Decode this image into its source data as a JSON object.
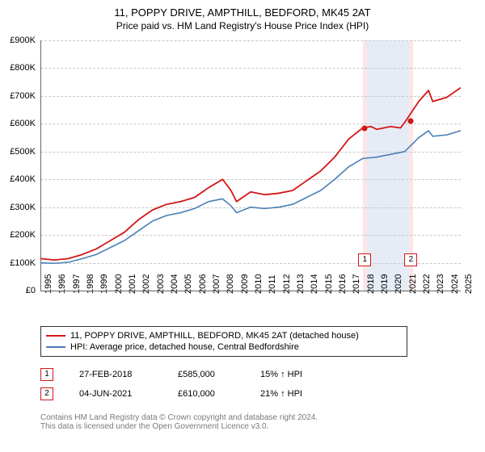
{
  "title": "11, POPPY DRIVE, AMPTHILL, BEDFORD, MK45 2AT",
  "subtitle": "Price paid vs. HM Land Registry's House Price Index (HPI)",
  "chart": {
    "type": "line",
    "background_color": "#ffffff",
    "grid_color": "#c8c8c8",
    "grid_dash": "3,3",
    "axis_color": "#666666",
    "x_range_years": [
      1995,
      2025
    ],
    "x_ticks": [
      1995,
      1996,
      1997,
      1998,
      1999,
      2000,
      2001,
      2002,
      2003,
      2004,
      2005,
      2006,
      2007,
      2008,
      2009,
      2010,
      2011,
      2012,
      2013,
      2014,
      2015,
      2016,
      2017,
      2018,
      2019,
      2020,
      2021,
      2022,
      2023,
      2024,
      2025
    ],
    "y_range": [
      0,
      900000
    ],
    "y_tick_step": 100000,
    "y_ticks": [
      0,
      100000,
      200000,
      300000,
      400000,
      500000,
      600000,
      700000,
      800000,
      900000
    ],
    "y_tick_labels": [
      "£0",
      "£100K",
      "£200K",
      "£300K",
      "£400K",
      "£500K",
      "£600K",
      "£700K",
      "£800K",
      "£900K"
    ],
    "series": [
      {
        "name": "11, POPPY DRIVE, AMPTHILL, BEDFORD, MK45 2AT (detached house)",
        "color": "#d21616",
        "width": 1.8,
        "points": [
          [
            1995,
            115000
          ],
          [
            1996,
            110000
          ],
          [
            1997,
            115000
          ],
          [
            1998,
            130000
          ],
          [
            1999,
            150000
          ],
          [
            2000,
            180000
          ],
          [
            2001,
            210000
          ],
          [
            2002,
            255000
          ],
          [
            2003,
            290000
          ],
          [
            2004,
            310000
          ],
          [
            2005,
            320000
          ],
          [
            2006,
            335000
          ],
          [
            2007,
            370000
          ],
          [
            2008,
            400000
          ],
          [
            2008.6,
            360000
          ],
          [
            2009,
            320000
          ],
          [
            2010,
            355000
          ],
          [
            2011,
            345000
          ],
          [
            2012,
            350000
          ],
          [
            2013,
            360000
          ],
          [
            2014,
            395000
          ],
          [
            2015,
            430000
          ],
          [
            2016,
            480000
          ],
          [
            2017,
            545000
          ],
          [
            2018,
            585000
          ],
          [
            2018.6,
            590000
          ],
          [
            2019,
            580000
          ],
          [
            2020,
            590000
          ],
          [
            2020.7,
            585000
          ],
          [
            2021,
            605000
          ],
          [
            2022,
            680000
          ],
          [
            2022.7,
            720000
          ],
          [
            2023,
            680000
          ],
          [
            2024,
            695000
          ],
          [
            2025,
            730000
          ]
        ]
      },
      {
        "name": "HPI: Average price, detached house, Central Bedfordshire",
        "color": "#4a7fb5",
        "width": 1.6,
        "points": [
          [
            1995,
            100000
          ],
          [
            1996,
            98000
          ],
          [
            1997,
            102000
          ],
          [
            1998,
            115000
          ],
          [
            1999,
            130000
          ],
          [
            2000,
            155000
          ],
          [
            2001,
            180000
          ],
          [
            2002,
            215000
          ],
          [
            2003,
            250000
          ],
          [
            2004,
            270000
          ],
          [
            2005,
            280000
          ],
          [
            2006,
            295000
          ],
          [
            2007,
            320000
          ],
          [
            2008,
            330000
          ],
          [
            2008.6,
            305000
          ],
          [
            2009,
            280000
          ],
          [
            2010,
            300000
          ],
          [
            2011,
            295000
          ],
          [
            2012,
            300000
          ],
          [
            2013,
            310000
          ],
          [
            2014,
            335000
          ],
          [
            2015,
            360000
          ],
          [
            2016,
            400000
          ],
          [
            2017,
            445000
          ],
          [
            2018,
            475000
          ],
          [
            2019,
            480000
          ],
          [
            2020,
            490000
          ],
          [
            2021,
            500000
          ],
          [
            2022,
            550000
          ],
          [
            2022.7,
            575000
          ],
          [
            2023,
            555000
          ],
          [
            2024,
            560000
          ],
          [
            2025,
            575000
          ]
        ]
      }
    ],
    "highlight_bands": [
      {
        "from_year": 2018.0,
        "to_year": 2018.3,
        "color": "#fde5e5"
      },
      {
        "from_year": 2018.3,
        "to_year": 2021.3,
        "color": "#e6ecf5"
      },
      {
        "from_year": 2021.3,
        "to_year": 2021.6,
        "color": "#fde5e5"
      }
    ],
    "event_markers": [
      {
        "id": "1",
        "year": 2018.15,
        "y_pos": 110000,
        "border_color": "#d21616"
      },
      {
        "id": "2",
        "year": 2021.45,
        "y_pos": 110000,
        "border_color": "#d21616"
      }
    ],
    "event_dots": [
      {
        "year": 2018.15,
        "value": 585000,
        "color": "#d21616"
      },
      {
        "year": 2021.42,
        "value": 610000,
        "color": "#d21616"
      }
    ]
  },
  "legend": {
    "border_color": "#333333",
    "items": [
      {
        "color": "#d21616",
        "width": 2,
        "label": "11, POPPY DRIVE, AMPTHILL, BEDFORD, MK45 2AT (detached house)"
      },
      {
        "color": "#4a7fb5",
        "width": 2,
        "label": "HPI: Average price, detached house, Central Bedfordshire"
      }
    ]
  },
  "events": [
    {
      "id": "1",
      "date": "27-FEB-2018",
      "price": "£585,000",
      "pct": "15% ↑ HPI",
      "border_color": "#d21616"
    },
    {
      "id": "2",
      "date": "04-JUN-2021",
      "price": "£610,000",
      "pct": "21% ↑ HPI",
      "border_color": "#d21616"
    }
  ],
  "footer": {
    "line1": "Contains HM Land Registry data © Crown copyright and database right 2024.",
    "line2": "This data is licensed under the Open Government Licence v3.0.",
    "color": "#7a7a7a"
  }
}
